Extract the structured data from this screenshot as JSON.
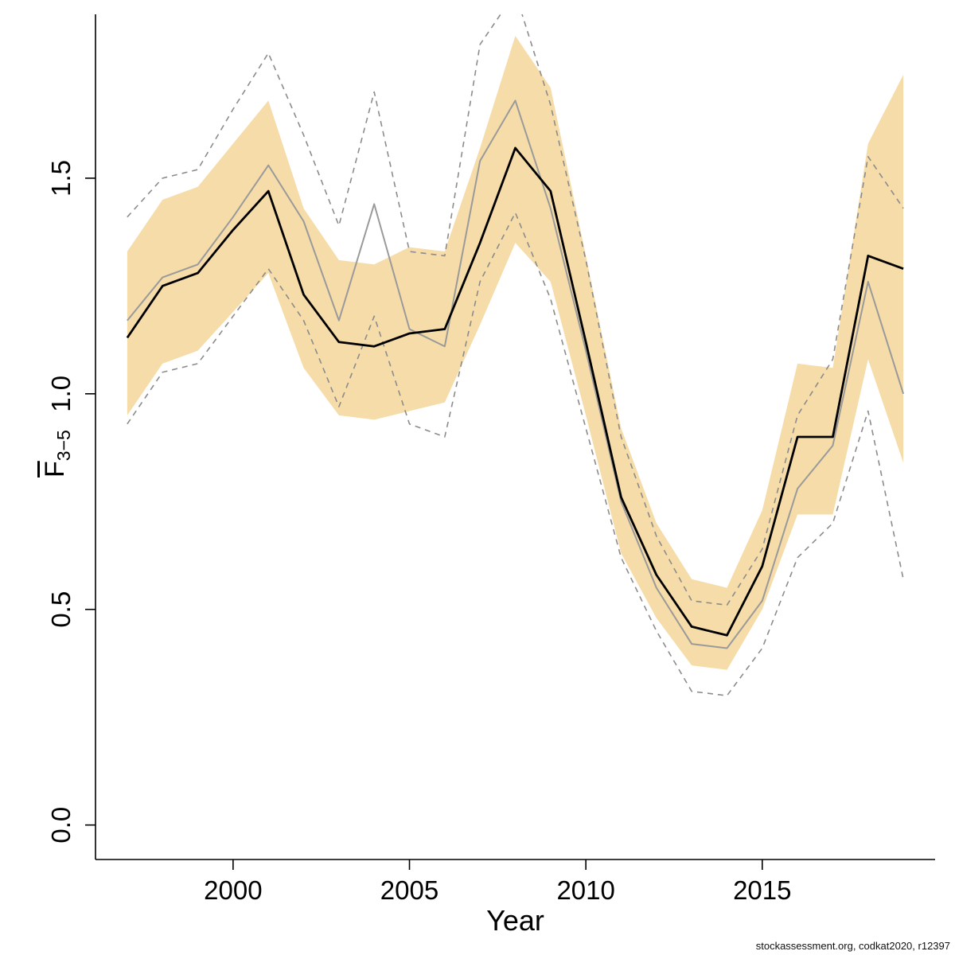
{
  "page": {
    "footnote": "stockassessment.org, codkat2020, r12397"
  },
  "chart_data": {
    "type": "line",
    "title": "",
    "xlabel": "Year",
    "ylabel": {
      "symbol": "F",
      "overbar": true,
      "subscript": "3−5"
    },
    "xlim": [
      1996.1,
      2019.9
    ],
    "ylim": [
      -0.08,
      1.88
    ],
    "grid": false,
    "legend": "none",
    "x_ticks": [
      {
        "value": 2000,
        "label": "2000"
      },
      {
        "value": 2005,
        "label": "2005"
      },
      {
        "value": 2010,
        "label": "2010"
      },
      {
        "value": 2015,
        "label": "2015"
      }
    ],
    "y_ticks": [
      {
        "value": 0.0,
        "label": "0.0"
      },
      {
        "value": 0.5,
        "label": "0.5"
      },
      {
        "value": 1.0,
        "label": "1.0"
      },
      {
        "value": 1.5,
        "label": "1.5"
      }
    ],
    "x": [
      1997,
      1998,
      1999,
      2000,
      2001,
      2002,
      2003,
      2004,
      2005,
      2006,
      2007,
      2008,
      2009,
      2010,
      2011,
      2012,
      2013,
      2014,
      2015,
      2016,
      2017,
      2018,
      2019
    ],
    "band": {
      "name": "estimate-confidence-band",
      "color": "#F5DCA8",
      "lower": [
        0.95,
        1.07,
        1.1,
        1.19,
        1.28,
        1.06,
        0.95,
        0.94,
        0.96,
        0.98,
        1.16,
        1.35,
        1.26,
        0.95,
        0.63,
        0.48,
        0.37,
        0.36,
        0.5,
        0.72,
        0.72,
        1.08,
        0.84
      ],
      "upper": [
        1.33,
        1.45,
        1.48,
        1.58,
        1.68,
        1.43,
        1.31,
        1.3,
        1.34,
        1.33,
        1.57,
        1.83,
        1.71,
        1.32,
        0.92,
        0.7,
        0.57,
        0.55,
        0.73,
        1.07,
        1.06,
        1.58,
        1.74
      ]
    },
    "series": [
      {
        "name": "previous-assessment-upper-ci",
        "color": "#8c8c8c",
        "style": "dashed",
        "width": 1.6,
        "values": [
          1.41,
          1.5,
          1.52,
          1.66,
          1.79,
          1.6,
          1.39,
          1.7,
          1.33,
          1.32,
          1.81,
          1.93,
          1.67,
          1.31,
          0.9,
          0.67,
          0.52,
          0.51,
          0.64,
          0.95,
          1.08,
          1.55,
          1.43
        ]
      },
      {
        "name": "previous-assessment-lower-ci",
        "color": "#8c8c8c",
        "style": "dashed",
        "width": 1.6,
        "values": [
          0.93,
          1.05,
          1.07,
          1.18,
          1.29,
          1.17,
          0.97,
          1.18,
          0.93,
          0.9,
          1.26,
          1.42,
          1.22,
          0.92,
          0.62,
          0.45,
          0.31,
          0.3,
          0.41,
          0.62,
          0.7,
          0.96,
          0.57
        ]
      },
      {
        "name": "previous-assessment",
        "color": "#9a9a9a",
        "style": "solid",
        "width": 2,
        "values": [
          1.17,
          1.27,
          1.3,
          1.41,
          1.53,
          1.4,
          1.17,
          1.44,
          1.15,
          1.11,
          1.54,
          1.68,
          1.43,
          1.1,
          0.75,
          0.55,
          0.42,
          0.41,
          0.52,
          0.78,
          0.88,
          1.26,
          1.0
        ]
      },
      {
        "name": "estimate",
        "color": "#000000",
        "style": "solid",
        "width": 2.8,
        "values": [
          1.13,
          1.25,
          1.28,
          1.38,
          1.47,
          1.23,
          1.12,
          1.11,
          1.14,
          1.15,
          1.35,
          1.57,
          1.47,
          1.12,
          0.76,
          0.58,
          0.46,
          0.44,
          0.6,
          0.9,
          0.9,
          1.32,
          1.29
        ]
      }
    ]
  }
}
